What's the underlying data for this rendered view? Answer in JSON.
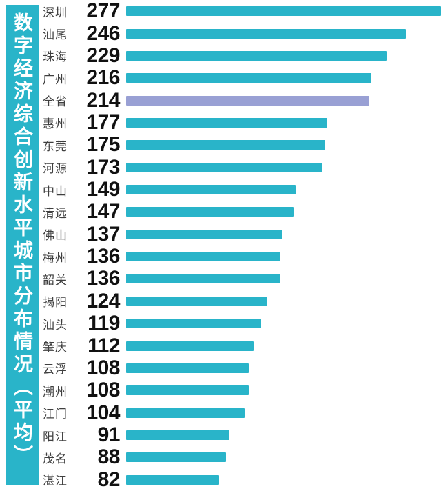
{
  "chart_data": {
    "type": "bar",
    "orientation": "horizontal",
    "title": "数字经济综合创新水平城市分布情况（平均）",
    "categories": [
      "深圳",
      "汕尾",
      "珠海",
      "广州",
      "全省",
      "惠州",
      "东莞",
      "河源",
      "中山",
      "清远",
      "佛山",
      "梅州",
      "韶关",
      "揭阳",
      "汕头",
      "肇庆",
      "云浮",
      "潮州",
      "江门",
      "阳江",
      "茂名",
      "湛江"
    ],
    "values": [
      277,
      246,
      229,
      216,
      214,
      177,
      175,
      173,
      149,
      147,
      137,
      136,
      136,
      124,
      119,
      112,
      108,
      108,
      104,
      91,
      88,
      82
    ],
    "highlight_category": "全省",
    "highlight_index": 4,
    "xlim": [
      0,
      277
    ],
    "grid": false,
    "legend": false,
    "value_label_position": "left-of-bar"
  },
  "colors": {
    "bar": "#29b4c9",
    "highlight_bar": "#99a0d4",
    "title_strip_bg": "#29b4c9",
    "title_text": "#ffffff",
    "category_label": "#3f3f3f",
    "value_label": "#111111",
    "background": "#ffffff"
  }
}
